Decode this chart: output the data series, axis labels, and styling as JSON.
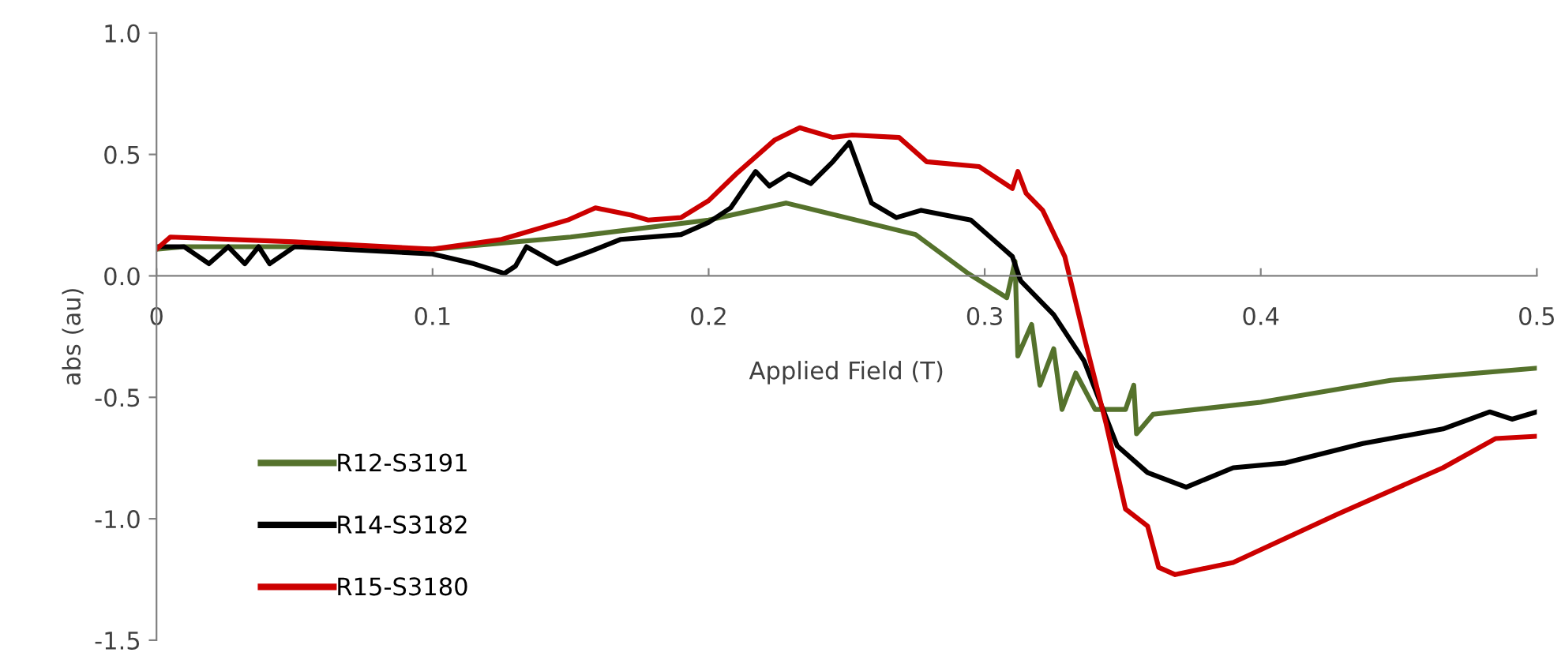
{
  "chart_data": {
    "type": "line",
    "xlabel": "Applied Field (T)",
    "ylabel": "abs (au)",
    "xlim": [
      0,
      0.5
    ],
    "xticks": [
      {
        "value": 0,
        "label": "0"
      },
      0.1,
      0.2,
      0.3,
      0.4,
      0.5
    ],
    "ylim": [
      -1.5,
      1.0
    ],
    "yticks": [
      {
        "value": -1.5,
        "label": "-1.5"
      },
      {
        "value": -1.0,
        "label": "-1.0"
      },
      {
        "value": -0.5,
        "label": "-0.5"
      },
      {
        "value": 0,
        "label": "0.0"
      },
      0.5,
      {
        "value": 1.0,
        "label": "1.0"
      }
    ],
    "grid": false,
    "legend": "bottom left",
    "marker": "none",
    "line_style": "solid",
    "series": [
      {
        "name": "R12-S3191",
        "color": "#55722c",
        "x": [
          0,
          0.01,
          0.05,
          0.1,
          0.15,
          0.2,
          0.228,
          0.275,
          0.294,
          0.308,
          0.311,
          0.312,
          0.317,
          0.32,
          0.325,
          0.328,
          0.333,
          0.34,
          0.351,
          0.354,
          0.355,
          0.361,
          0.4,
          0.447,
          0.5
        ],
        "values": [
          0.11,
          0.12,
          0.12,
          0.11,
          0.16,
          0.23,
          0.3,
          0.17,
          0.01,
          -0.09,
          0.06,
          -0.33,
          -0.2,
          -0.45,
          -0.3,
          -0.55,
          -0.4,
          -0.55,
          -0.55,
          -0.45,
          -0.65,
          -0.57,
          -0.52,
          -0.43,
          -0.38
        ]
      },
      {
        "name": "R14-S3182",
        "color": "#000000",
        "x": [
          0,
          0.01,
          0.019,
          0.026,
          0.032,
          0.037,
          0.041,
          0.05,
          0.1,
          0.115,
          0.126,
          0.13,
          0.134,
          0.145,
          0.157,
          0.168,
          0.19,
          0.2,
          0.208,
          0.217,
          0.222,
          0.229,
          0.237,
          0.245,
          0.251,
          0.259,
          0.268,
          0.277,
          0.295,
          0.31,
          0.313,
          0.325,
          0.336,
          0.348,
          0.359,
          0.373,
          0.39,
          0.409,
          0.437,
          0.466,
          0.483,
          0.491,
          0.5
        ],
        "values": [
          0.12,
          0.12,
          0.05,
          0.12,
          0.05,
          0.12,
          0.05,
          0.12,
          0.09,
          0.05,
          0.01,
          0.04,
          0.12,
          0.05,
          0.1,
          0.15,
          0.17,
          0.22,
          0.28,
          0.43,
          0.37,
          0.42,
          0.38,
          0.47,
          0.55,
          0.3,
          0.24,
          0.27,
          0.23,
          0.08,
          -0.02,
          -0.16,
          -0.35,
          -0.7,
          -0.81,
          -0.87,
          -0.79,
          -0.77,
          -0.69,
          -0.63,
          -0.56,
          -0.59,
          -0.56
        ]
      },
      {
        "name": "R15-S3180",
        "color": "#cc0000",
        "x": [
          0,
          0.005,
          0.05,
          0.1,
          0.125,
          0.149,
          0.159,
          0.172,
          0.178,
          0.19,
          0.2,
          0.21,
          0.224,
          0.233,
          0.245,
          0.252,
          0.269,
          0.279,
          0.298,
          0.31,
          0.312,
          0.315,
          0.321,
          0.329,
          0.336,
          0.344,
          0.351,
          0.359,
          0.363,
          0.369,
          0.39,
          0.428,
          0.466,
          0.485,
          0.5
        ],
        "values": [
          0.11,
          0.16,
          0.14,
          0.11,
          0.15,
          0.23,
          0.28,
          0.25,
          0.23,
          0.24,
          0.31,
          0.42,
          0.56,
          0.61,
          0.57,
          0.58,
          0.57,
          0.47,
          0.45,
          0.36,
          0.43,
          0.34,
          0.27,
          0.08,
          -0.25,
          -0.61,
          -0.96,
          -1.03,
          -1.2,
          -1.23,
          -1.18,
          -0.98,
          -0.79,
          -0.67,
          -0.66
        ]
      }
    ]
  }
}
